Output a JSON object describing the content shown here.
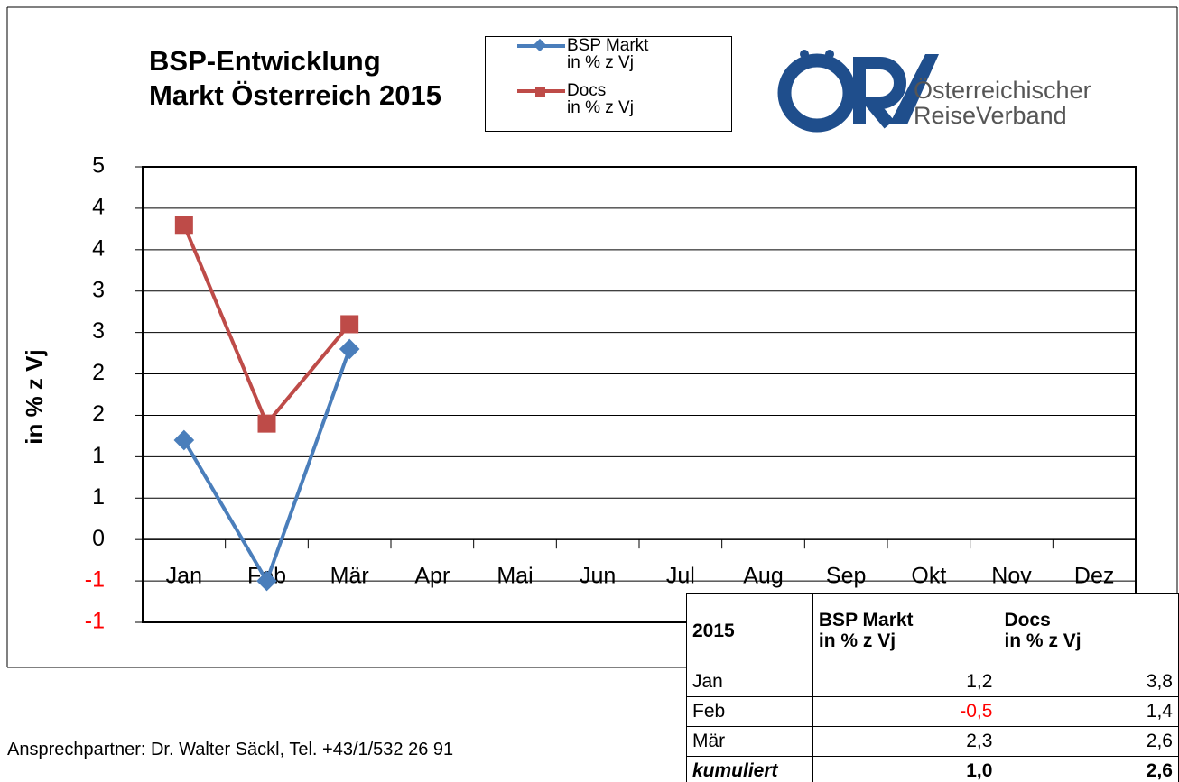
{
  "chart_data": {
    "type": "line",
    "title": "BSP-Entwicklung",
    "subtitle": "Markt Österreich 2015",
    "y_label": "in % z Vj",
    "categories": [
      "Jan",
      "Feb",
      "Mär",
      "Apr",
      "Mai",
      "Jun",
      "Jul",
      "Aug",
      "Sep",
      "Okt",
      "Nov",
      "Dez"
    ],
    "series": [
      {
        "name": "BSP Markt\nin % z Vj",
        "color": "#4a7ebb",
        "marker": "diamond",
        "values": [
          1.2,
          -0.5,
          2.3,
          null,
          null,
          null,
          null,
          null,
          null,
          null,
          null,
          null
        ]
      },
      {
        "name": "Docs\nin % z Vj",
        "color": "#be4b48",
        "marker": "square",
        "values": [
          3.8,
          1.4,
          2.6,
          null,
          null,
          null,
          null,
          null,
          null,
          null,
          null,
          null
        ]
      }
    ],
    "ylim": [
      -1,
      4.5
    ],
    "yticks": [
      -1,
      {
        "value": -0.5,
        "label": "-1"
      },
      0,
      {
        "value": 0.5,
        "label": "1"
      },
      1,
      {
        "value": 1.5,
        "label": "2"
      },
      2,
      {
        "value": 2.5,
        "label": "3"
      },
      3,
      {
        "value": 3.5,
        "label": "4"
      },
      4,
      {
        "value": 4.5,
        "label": "5"
      }
    ],
    "negative_tick_color": "#ff0000",
    "grid": true
  },
  "logo": {
    "line1": "Österreichischer",
    "line2": "ReiseVerband"
  },
  "table": {
    "header": [
      "2015",
      "BSP Markt\nin % z Vj",
      "Docs\nin % z Vj"
    ],
    "rows": [
      [
        "Jan",
        "1,2",
        "3,8"
      ],
      [
        "Feb",
        "-0,5",
        "1,4"
      ],
      [
        "Mär",
        "2,3",
        "2,6"
      ],
      [
        "kumuliert",
        "1,0",
        "2,6"
      ]
    ]
  },
  "contact": "Ansprechpartner: Dr. Walter Säckl, Tel. +43/1/532 26 91"
}
